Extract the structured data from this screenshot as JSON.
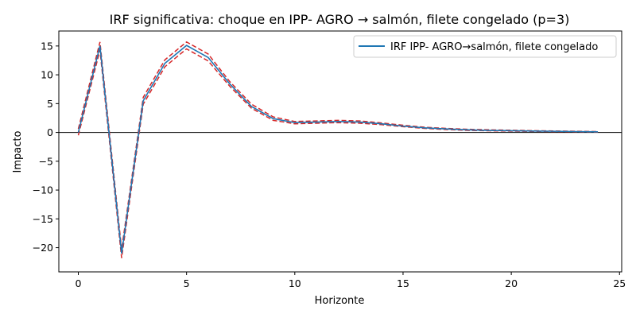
{
  "chart_data": {
    "type": "line",
    "title": "IRF significativa: choque en IPP- AGRO → salmón, filete congelado (p=3)",
    "xlabel": "Horizonte",
    "ylabel": "Impacto",
    "xlim": [
      -0.9,
      25.1
    ],
    "ylim": [
      -24.2,
      17.6
    ],
    "xticks": [
      0,
      5,
      10,
      15,
      20,
      25
    ],
    "xtick_labels": [
      "0",
      "5",
      "10",
      "15",
      "20",
      "25"
    ],
    "yticks": [
      -20,
      -15,
      -10,
      -5,
      0,
      5,
      10,
      15
    ],
    "ytick_labels": [
      "−20",
      "−15",
      "−10",
      "−5",
      "0",
      "5",
      "10",
      "15"
    ],
    "grid": false,
    "legend_position": "top-right",
    "zero_line": true,
    "x": [
      0,
      1,
      2,
      3,
      4,
      5,
      6,
      7,
      8,
      9,
      10,
      11,
      12,
      13,
      14,
      15,
      16,
      17,
      18,
      19,
      20,
      21,
      22,
      23,
      24
    ],
    "series": [
      {
        "name": "IRF IPP- AGRO→salmón, filete congelado",
        "role": "irf",
        "color": "#1f77b4",
        "values": [
          0.0,
          15.0,
          -21.0,
          5.5,
          12.0,
          15.1,
          13.0,
          8.4,
          4.5,
          2.4,
          1.7,
          1.8,
          1.9,
          1.8,
          1.5,
          1.1,
          0.8,
          0.6,
          0.45,
          0.35,
          0.3,
          0.25,
          0.2,
          0.15,
          0.1
        ]
      },
      {
        "role": "upper-band",
        "color": "#d62728",
        "values": [
          0.6,
          15.7,
          -20.3,
          6.1,
          12.6,
          15.7,
          13.6,
          8.8,
          4.9,
          2.7,
          1.9,
          2.0,
          2.1,
          2.0,
          1.65,
          1.25,
          0.9,
          0.7,
          0.55,
          0.45,
          0.38,
          0.3,
          0.25,
          0.2,
          0.15
        ]
      },
      {
        "role": "lower-band",
        "color": "#d62728",
        "values": [
          -0.5,
          14.3,
          -21.8,
          4.9,
          11.4,
          14.5,
          12.4,
          8.0,
          4.2,
          2.1,
          1.5,
          1.6,
          1.7,
          1.6,
          1.35,
          1.0,
          0.7,
          0.5,
          0.35,
          0.28,
          0.22,
          0.18,
          0.15,
          0.1,
          0.06
        ]
      }
    ]
  }
}
